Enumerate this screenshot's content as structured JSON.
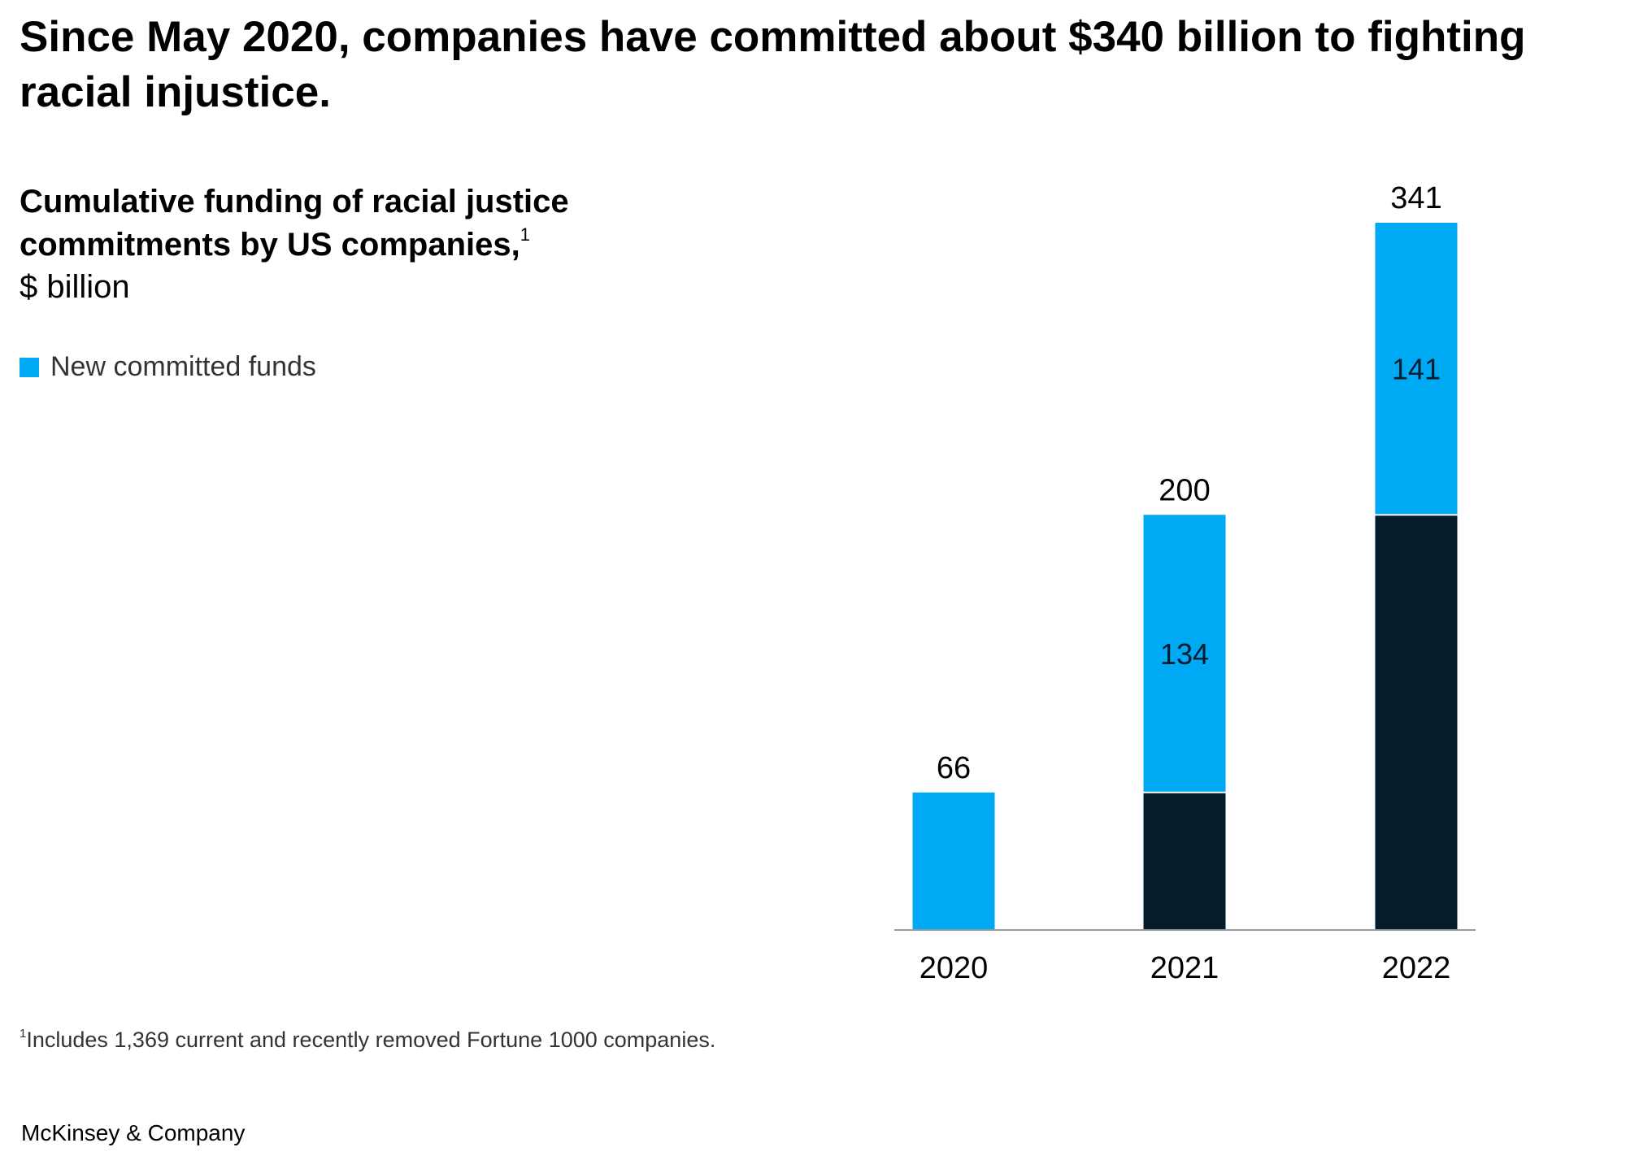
{
  "headline": "Since May 2020, companies have committed about $340 billion to fighting racial injustice.",
  "subtitle": "Cumulative funding of racial justice commitments by US companies,",
  "subtitle_footnote_ref": "1",
  "unit": "$ billion",
  "footnote_ref": "1",
  "footnote": "Includes 1,369 current and recently removed Fortune 1000 companies.",
  "brand": "McKinsey & Company",
  "colors": {
    "new_funds": "#00a9f4",
    "prior_funds": "#051c2c",
    "axis": "#9a9a9a"
  },
  "chart_data": {
    "type": "bar",
    "stacked": true,
    "categories": [
      "2020",
      "2021",
      "2022"
    ],
    "series": [
      {
        "values": [
          0,
          66,
          200
        ],
        "color": "#051c2c"
      },
      {
        "name": "New committed funds",
        "values": [
          66,
          134,
          141
        ],
        "color": "#00a9f4"
      }
    ],
    "segment_labels": [
      "",
      "134",
      "141"
    ],
    "totals": [
      66,
      200,
      341
    ],
    "total_labels": [
      "66",
      "200",
      "341"
    ],
    "ylim": [
      0,
      341
    ],
    "grid": false,
    "legend": "top-left"
  }
}
